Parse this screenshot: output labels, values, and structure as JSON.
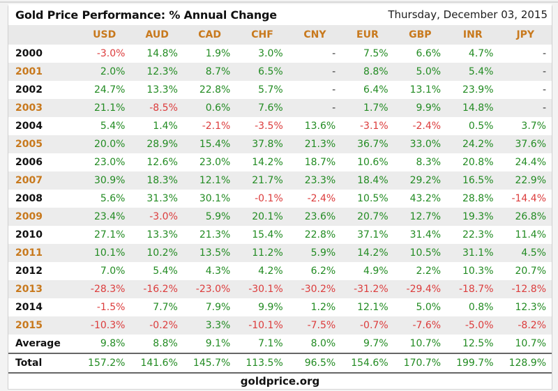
{
  "page": {
    "title": "Gold Price Performance: % Annual Change",
    "date": "Thursday, December 03, 2015",
    "footer": "goldprice.org"
  },
  "colors": {
    "positive_green": "#228b22",
    "negative_red": "#dc3c3c",
    "accent_orange": "#c8791d",
    "header_bg": "#e9e9e9",
    "alt_row_bg": "#ececec"
  },
  "chart_data": {
    "type": "table",
    "title": "Gold Price Performance: % Annual Change",
    "columns": [
      "USD",
      "AUD",
      "CAD",
      "CHF",
      "CNY",
      "EUR",
      "GBP",
      "INR",
      "JPY"
    ],
    "value_semantics": "percent annual change; '-' = no data; negatives rendered red, positives green",
    "rows": [
      {
        "label": "2000",
        "accent": false,
        "alt": false,
        "values": [
          "-3.0%",
          "14.8%",
          "1.9%",
          "3.0%",
          "-",
          "7.5%",
          "6.6%",
          "4.7%",
          "-"
        ]
      },
      {
        "label": "2001",
        "accent": true,
        "alt": true,
        "values": [
          "2.0%",
          "12.3%",
          "8.7%",
          "6.5%",
          "-",
          "8.8%",
          "5.0%",
          "5.4%",
          "-"
        ]
      },
      {
        "label": "2002",
        "accent": false,
        "alt": false,
        "values": [
          "24.7%",
          "13.3%",
          "22.8%",
          "5.7%",
          "-",
          "6.4%",
          "13.1%",
          "23.9%",
          "-"
        ]
      },
      {
        "label": "2003",
        "accent": true,
        "alt": true,
        "values": [
          "21.1%",
          "-8.5%",
          "0.6%",
          "7.6%",
          "-",
          "1.7%",
          "9.9%",
          "14.8%",
          "-"
        ]
      },
      {
        "label": "2004",
        "accent": false,
        "alt": false,
        "values": [
          "5.4%",
          "1.4%",
          "-2.1%",
          "-3.5%",
          "13.6%",
          "-3.1%",
          "-2.4%",
          "0.5%",
          "3.7%"
        ]
      },
      {
        "label": "2005",
        "accent": true,
        "alt": true,
        "values": [
          "20.0%",
          "28.9%",
          "15.4%",
          "37.8%",
          "21.3%",
          "36.7%",
          "33.0%",
          "24.2%",
          "37.6%"
        ]
      },
      {
        "label": "2006",
        "accent": false,
        "alt": false,
        "values": [
          "23.0%",
          "12.6%",
          "23.0%",
          "14.2%",
          "18.7%",
          "10.6%",
          "8.3%",
          "20.8%",
          "24.4%"
        ]
      },
      {
        "label": "2007",
        "accent": true,
        "alt": true,
        "values": [
          "30.9%",
          "18.3%",
          "12.1%",
          "21.7%",
          "23.3%",
          "18.4%",
          "29.2%",
          "16.5%",
          "22.9%"
        ]
      },
      {
        "label": "2008",
        "accent": false,
        "alt": false,
        "values": [
          "5.6%",
          "31.3%",
          "30.1%",
          "-0.1%",
          "-2.4%",
          "10.5%",
          "43.2%",
          "28.8%",
          "-14.4%"
        ]
      },
      {
        "label": "2009",
        "accent": true,
        "alt": true,
        "values": [
          "23.4%",
          "-3.0%",
          "5.9%",
          "20.1%",
          "23.6%",
          "20.7%",
          "12.7%",
          "19.3%",
          "26.8%"
        ]
      },
      {
        "label": "2010",
        "accent": false,
        "alt": false,
        "values": [
          "27.1%",
          "13.3%",
          "21.3%",
          "15.4%",
          "22.8%",
          "37.1%",
          "31.4%",
          "22.3%",
          "11.4%"
        ]
      },
      {
        "label": "2011",
        "accent": true,
        "alt": true,
        "values": [
          "10.1%",
          "10.2%",
          "13.5%",
          "11.2%",
          "5.9%",
          "14.2%",
          "10.5%",
          "31.1%",
          "4.5%"
        ]
      },
      {
        "label": "2012",
        "accent": false,
        "alt": false,
        "values": [
          "7.0%",
          "5.4%",
          "4.3%",
          "4.2%",
          "6.2%",
          "4.9%",
          "2.2%",
          "10.3%",
          "20.7%"
        ]
      },
      {
        "label": "2013",
        "accent": true,
        "alt": true,
        "values": [
          "-28.3%",
          "-16.2%",
          "-23.0%",
          "-30.1%",
          "-30.2%",
          "-31.2%",
          "-29.4%",
          "-18.7%",
          "-12.8%"
        ]
      },
      {
        "label": "2014",
        "accent": false,
        "alt": false,
        "values": [
          "-1.5%",
          "7.7%",
          "7.9%",
          "9.9%",
          "1.2%",
          "12.1%",
          "5.0%",
          "0.8%",
          "12.3%"
        ]
      },
      {
        "label": "2015",
        "accent": true,
        "alt": true,
        "values": [
          "-10.3%",
          "-0.2%",
          "3.3%",
          "-10.1%",
          "-7.5%",
          "-0.7%",
          "-7.6%",
          "-5.0%",
          "-8.2%"
        ]
      },
      {
        "label": "Average",
        "accent": false,
        "alt": false,
        "values": [
          "9.8%",
          "8.8%",
          "9.1%",
          "7.1%",
          "8.0%",
          "9.7%",
          "10.7%",
          "12.5%",
          "10.7%"
        ]
      },
      {
        "label": "Total",
        "accent": false,
        "alt": false,
        "values": [
          "157.2%",
          "141.6%",
          "145.7%",
          "113.5%",
          "96.5%",
          "154.6%",
          "170.7%",
          "199.7%",
          "128.9%"
        ]
      }
    ]
  }
}
